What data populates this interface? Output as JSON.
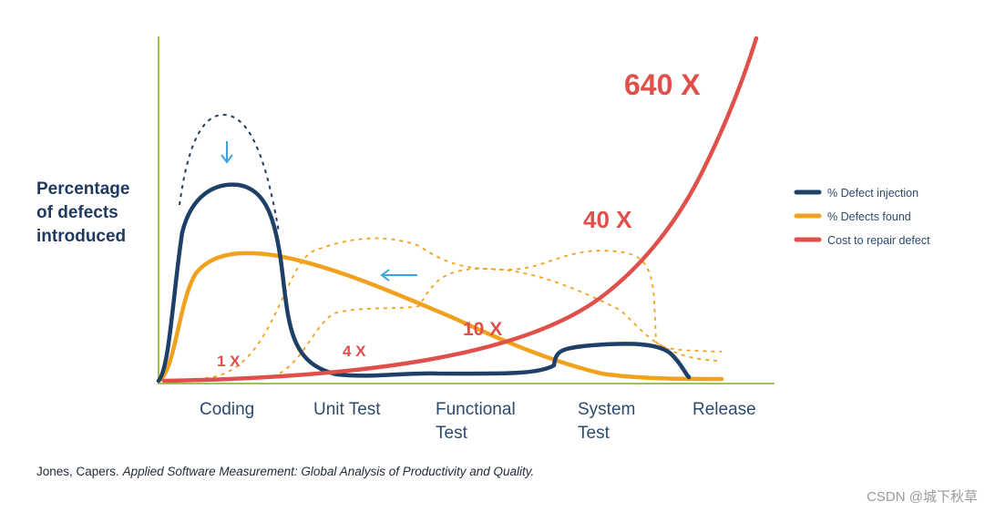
{
  "chart_data": {
    "type": "line",
    "title": "",
    "ylabel_lines": [
      "Percentage",
      "of defects",
      "introduced"
    ],
    "xlabel": "",
    "categories": [
      {
        "lines": [
          "Coding"
        ]
      },
      {
        "lines": [
          "Unit Test"
        ]
      },
      {
        "lines": [
          "Functional",
          "Test"
        ]
      },
      {
        "lines": [
          "System",
          "Test"
        ]
      },
      {
        "lines": [
          "Release"
        ]
      }
    ],
    "series": [
      {
        "name": "% Defect injection",
        "color": "#1e3f66",
        "style": "solid"
      },
      {
        "name": "% Defects found",
        "color": "#f0a21f",
        "style": "solid"
      },
      {
        "name": "Cost to repair defect",
        "color": "#e0504a",
        "style": "solid"
      }
    ],
    "cost_multipliers": [
      {
        "label": "1 X"
      },
      {
        "label": "4 X"
      },
      {
        "label": "10 X"
      },
      {
        "label": "40 X"
      },
      {
        "label": "640 X"
      }
    ],
    "annotations": [
      "dashed outlines show shifted distributions",
      "arrows indicate earlier defect discovery"
    ],
    "legend_position": "right",
    "grid": false
  },
  "citation": {
    "author": "Jones, Capers.",
    "title": "Applied Software Measurement: Global Analysis of Productivity and Quality."
  },
  "watermark": "CSDN @城下秋草",
  "colors": {
    "axis": "#9fc05a",
    "injection": "#1e3f66",
    "found": "#f0a21f",
    "cost": "#e0504a",
    "arrow": "#3aa3e0"
  }
}
